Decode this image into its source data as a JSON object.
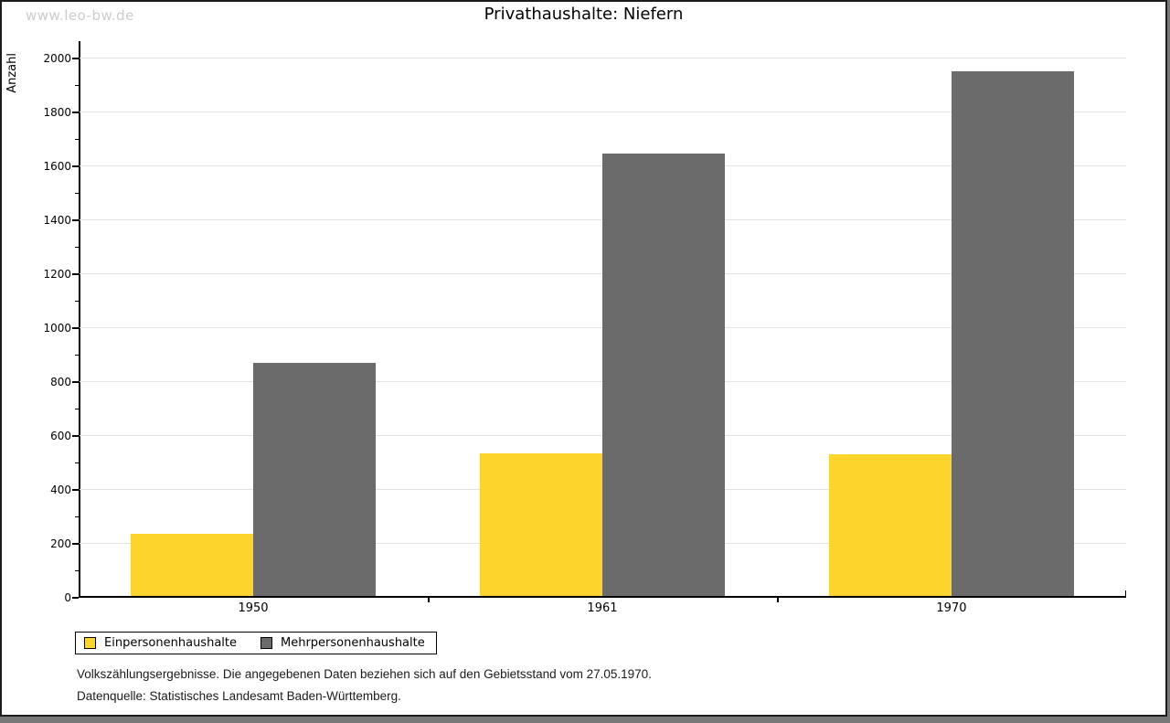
{
  "watermark": "www.leo-bw.de",
  "title": "Privathaushalte: Niefern",
  "chart_data": {
    "type": "bar",
    "title": "Privathaushalte: Niefern",
    "xlabel": "",
    "ylabel": "Anzahl",
    "categories": [
      "1950",
      "1961",
      "1970"
    ],
    "series": [
      {
        "name": "Einpersonenhaushalte",
        "color": "#fdd42c",
        "values": [
          230,
          530,
          525
        ]
      },
      {
        "name": "Mehrpersonenhaushalte",
        "color": "#6b6b6b",
        "values": [
          865,
          1640,
          1945
        ]
      }
    ],
    "ylim": [
      0,
      2000
    ],
    "ytick_step": 200,
    "minor_tick_step": 100,
    "grid": true,
    "legend_position": "bottom-left"
  },
  "footer": {
    "line1": "Volkszählungsergebnisse. Die angegebenen Daten beziehen sich auf den Gebietsstand vom 27.05.1970.",
    "line2": "Datenquelle: Statistisches Landesamt Baden-Württemberg."
  },
  "colors": {
    "series1": "#fdd42c",
    "series2": "#6b6b6b",
    "gridline": "#e1e1e1",
    "watermark": "#cccccc",
    "window_edge": "#787878"
  }
}
